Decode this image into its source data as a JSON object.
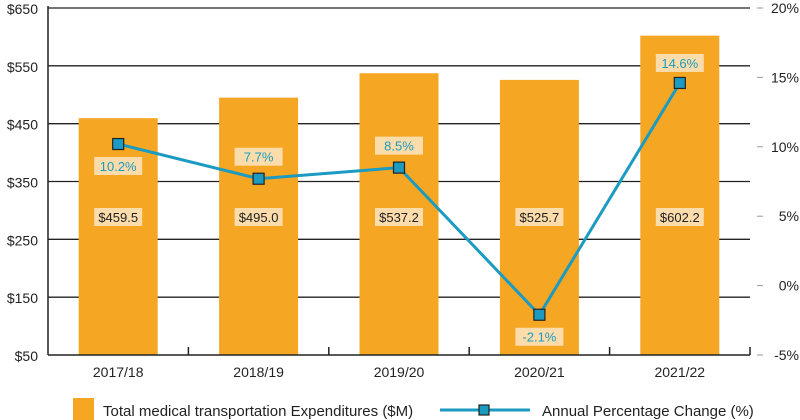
{
  "chart_data": {
    "type": "bar",
    "categories": [
      "2017/18",
      "2018/19",
      "2019/20",
      "2020/21",
      "2021/22"
    ],
    "series": [
      {
        "name": "Total medical transportation Expenditures ($M)",
        "kind": "bar",
        "axis": "left",
        "values": [
          459.5,
          495.0,
          537.2,
          525.7,
          602.2
        ],
        "labels": [
          "$459.5",
          "$495.0",
          "$537.2",
          "$525.7",
          "$602.2"
        ]
      },
      {
        "name": "Annual Percentage Change (%)",
        "kind": "line",
        "axis": "right",
        "values": [
          10.2,
          7.7,
          8.5,
          -2.1,
          14.6
        ],
        "labels": [
          "10.2%",
          "7.7%",
          "8.5%",
          "-2.1%",
          "14.6%"
        ]
      }
    ],
    "ylim": [
      50,
      650
    ],
    "yticks": [
      "$50",
      "$150",
      "$250",
      "$350",
      "$450",
      "$550",
      "$650"
    ],
    "y2lim": [
      -5,
      20
    ],
    "y2ticks": [
      "-5%",
      "0%",
      "5%",
      "10%",
      "15%",
      "20%"
    ],
    "grid": true,
    "legend": "bottom",
    "colors": {
      "bar": "#F5A623",
      "line": "#1B9BC1",
      "label_bg": "#FCDCAA",
      "label_text_pct": "#1B9BC1",
      "label_text_val": "#222222"
    }
  }
}
